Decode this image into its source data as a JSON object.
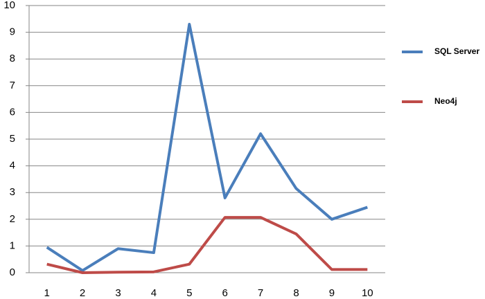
{
  "chart_data": {
    "type": "line",
    "x": [
      1,
      2,
      3,
      4,
      5,
      6,
      7,
      8,
      9,
      10
    ],
    "xlim": [
      0.5,
      10.5
    ],
    "series": [
      {
        "name": "SQL Server",
        "color": "#4a7ebb",
        "values": [
          0.95,
          0.08,
          0.9,
          0.75,
          9.3,
          2.8,
          5.2,
          3.15,
          2.0,
          2.45
        ]
      },
      {
        "name": "Neo4j",
        "color": "#be4b48",
        "values": [
          0.32,
          0.0,
          0.02,
          0.03,
          0.32,
          2.07,
          2.07,
          1.45,
          0.12,
          0.12
        ]
      }
    ],
    "ylim": [
      0,
      10
    ],
    "yticks": [
      0,
      1,
      2,
      3,
      4,
      5,
      6,
      7,
      8,
      9,
      10
    ],
    "grid": true,
    "legend": "right"
  }
}
